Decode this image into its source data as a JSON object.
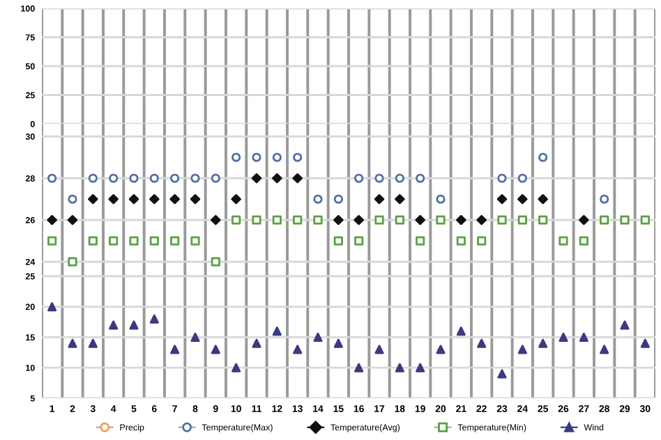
{
  "chart_data": [
    {
      "type": "scatter",
      "categories": [
        "1",
        "2",
        "3",
        "4",
        "5",
        "6",
        "7",
        "8",
        "9",
        "10",
        "11",
        "12",
        "13",
        "14",
        "15",
        "16",
        "17",
        "18",
        "19",
        "20",
        "21",
        "22",
        "23",
        "24",
        "25",
        "26",
        "27",
        "28",
        "29",
        "30"
      ],
      "ylim": [
        0,
        100
      ],
      "yticks": [
        0,
        25,
        50,
        75,
        100
      ],
      "grid": true,
      "tick_labels": "y",
      "legend": "bottom",
      "series": [
        {
          "name": "Precip",
          "color": "#f0a050",
          "marker": "circle",
          "values": [
            null,
            null,
            null,
            null,
            null,
            null,
            null,
            null,
            null,
            null,
            null,
            null,
            null,
            null,
            null,
            null,
            null,
            null,
            null,
            null,
            null,
            null,
            null,
            null,
            null,
            null,
            null,
            null,
            null,
            null
          ]
        }
      ]
    },
    {
      "type": "scatter",
      "categories": [
        "1",
        "2",
        "3",
        "4",
        "5",
        "6",
        "7",
        "8",
        "9",
        "10",
        "11",
        "12",
        "13",
        "14",
        "15",
        "16",
        "17",
        "18",
        "19",
        "20",
        "21",
        "22",
        "23",
        "24",
        "25",
        "26",
        "27",
        "28",
        "29",
        "30"
      ],
      "ylim": [
        23.6,
        30.6
      ],
      "yticks": [
        24,
        26,
        28,
        30
      ],
      "grid": true,
      "tick_labels": "y",
      "legend": "bottom",
      "series": [
        {
          "name": "Temperature(Max)",
          "color": "#4f6fa0",
          "marker": "circle",
          "values": [
            28,
            27,
            28,
            28,
            28,
            28,
            28,
            28,
            28,
            29,
            29,
            29,
            29,
            27,
            27,
            28,
            28,
            28,
            28,
            27,
            null,
            null,
            28,
            28,
            29,
            null,
            null,
            27,
            null,
            null
          ]
        },
        {
          "name": "Temperature(Avg)",
          "color": "#111111",
          "marker": "diamond",
          "values": [
            26,
            26,
            27,
            27,
            27,
            27,
            27,
            27,
            26,
            27,
            28,
            28,
            28,
            null,
            26,
            26,
            27,
            27,
            26,
            null,
            26,
            26,
            27,
            27,
            27,
            null,
            26,
            null,
            null,
            null
          ]
        },
        {
          "name": "Temperature(Min)",
          "color": "#5aa040",
          "marker": "square",
          "values": [
            25,
            24,
            25,
            25,
            25,
            25,
            25,
            25,
            24,
            26,
            26,
            26,
            26,
            26,
            25,
            25,
            26,
            26,
            25,
            26,
            25,
            25,
            26,
            26,
            26,
            25,
            25,
            26,
            26,
            26
          ]
        }
      ]
    },
    {
      "type": "scatter",
      "categories": [
        "1",
        "2",
        "3",
        "4",
        "5",
        "6",
        "7",
        "8",
        "9",
        "10",
        "11",
        "12",
        "13",
        "14",
        "15",
        "16",
        "17",
        "18",
        "19",
        "20",
        "21",
        "22",
        "23",
        "24",
        "25",
        "26",
        "27",
        "28",
        "29",
        "30"
      ],
      "ylim": [
        5,
        26
      ],
      "yticks": [
        5,
        10,
        15,
        20,
        25
      ],
      "grid": true,
      "legend": "bottom",
      "series": [
        {
          "name": "Wind",
          "color": "#3a3a80",
          "marker": "triangle",
          "values": [
            20,
            14,
            14,
            17,
            17,
            18,
            13,
            15,
            13,
            10,
            14,
            16,
            13,
            15,
            14,
            10,
            13,
            10,
            10,
            13,
            16,
            14,
            9,
            13,
            14,
            15,
            15,
            13,
            17,
            14
          ]
        }
      ]
    }
  ]
}
